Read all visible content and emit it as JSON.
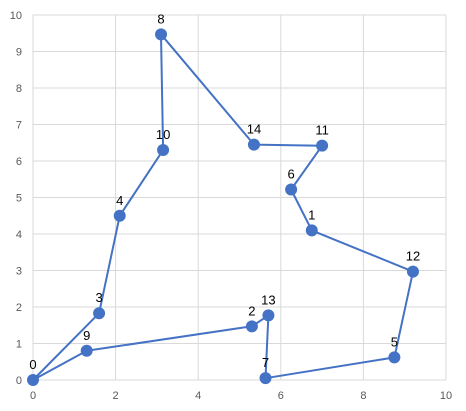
{
  "chart_data": {
    "type": "scatter",
    "title": "",
    "xlabel": "",
    "ylabel": "",
    "xlim": [
      0,
      10
    ],
    "ylim": [
      0,
      10
    ],
    "x_ticks": [
      "0",
      "2",
      "4",
      "6",
      "8",
      "10"
    ],
    "y_ticks": [
      "0",
      "1",
      "2",
      "3",
      "4",
      "5",
      "6",
      "7",
      "8",
      "9",
      "10"
    ],
    "grid": true,
    "legend": "none",
    "series": [
      {
        "line_color": "#4472c4",
        "marker_color": "#4472c4",
        "points": [
          {
            "label": "0",
            "x": 0.0,
            "y": 0.0
          },
          {
            "label": "9",
            "x": 1.3,
            "y": 0.8
          },
          {
            "label": "2",
            "x": 5.3,
            "y": 1.47
          },
          {
            "label": "13",
            "x": 5.7,
            "y": 1.77
          },
          {
            "label": "7",
            "x": 5.63,
            "y": 0.05
          },
          {
            "label": "5",
            "x": 8.75,
            "y": 0.62
          },
          {
            "label": "12",
            "x": 9.2,
            "y": 2.97
          },
          {
            "label": "1",
            "x": 6.75,
            "y": 4.1
          },
          {
            "label": "6",
            "x": 6.25,
            "y": 5.22
          },
          {
            "label": "11",
            "x": 7.0,
            "y": 6.42
          },
          {
            "label": "14",
            "x": 5.35,
            "y": 6.45
          },
          {
            "label": "8",
            "x": 3.1,
            "y": 9.47
          },
          {
            "label": "10",
            "x": 3.15,
            "y": 6.3
          },
          {
            "label": "4",
            "x": 2.1,
            "y": 4.5
          },
          {
            "label": "3",
            "x": 1.6,
            "y": 1.83
          },
          {
            "label": "0",
            "x": 0.0,
            "y": 0.0
          }
        ]
      }
    ]
  }
}
